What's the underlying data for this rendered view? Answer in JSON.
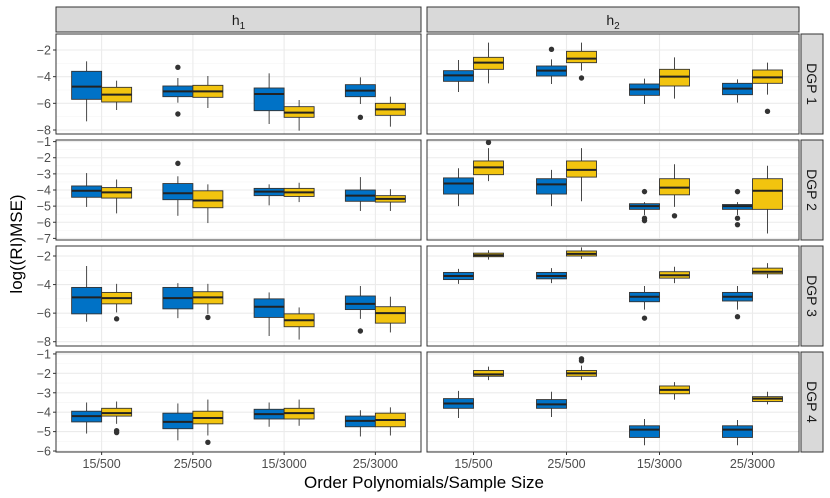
{
  "chart_data": {
    "type": "boxplot-facet",
    "xlabel": "Order Polynomials/Sample Size",
    "ylabel": "log((RI)MSE)",
    "categories": [
      "15/500",
      "25/500",
      "15/3000",
      "25/3000"
    ],
    "colors": {
      "series_a": "#0072C6",
      "series_b": "#F2C40F",
      "strip_bg": "#D9D9D9",
      "grid_major": "#EBEBEB",
      "grid_minor": "#F5F5F5",
      "axis_text": "#4D4D4D"
    },
    "columns": [
      {
        "label": "h",
        "subscript": "1"
      },
      {
        "label": "h",
        "subscript": "2"
      }
    ],
    "rows": [
      {
        "label": "DGP 1",
        "ylim": [
          -8.3,
          -0.8
        ],
        "ticks": [
          -8,
          -6,
          -4,
          -2
        ],
        "panels": [
          {
            "boxes": [
              {
                "series": "a",
                "q1": -5.7,
                "median": -4.75,
                "q3": -3.6,
                "lo": -7.35,
                "hi": -2.85,
                "outliers": []
              },
              {
                "series": "b",
                "q1": -5.9,
                "median": -5.35,
                "q3": -4.8,
                "lo": -6.5,
                "hi": -4.3,
                "outliers": []
              },
              {
                "series": "a",
                "q1": -5.5,
                "median": -5.1,
                "q3": -4.7,
                "lo": -5.95,
                "hi": -4.1,
                "outliers": [
                  -3.3,
                  -6.8
                ]
              },
              {
                "series": "b",
                "q1": -5.55,
                "median": -5.1,
                "q3": -4.65,
                "lo": -6.35,
                "hi": -3.95,
                "outliers": []
              },
              {
                "series": "a",
                "q1": -6.55,
                "median": -5.3,
                "q3": -4.85,
                "lo": -7.55,
                "hi": -3.75,
                "outliers": []
              },
              {
                "series": "b",
                "q1": -7.05,
                "median": -6.7,
                "q3": -6.25,
                "lo": -8.05,
                "hi": -5.75,
                "outliers": []
              },
              {
                "series": "a",
                "q1": -5.5,
                "median": -5.05,
                "q3": -4.6,
                "lo": -6.05,
                "hi": -4.05,
                "outliers": [
                  -7.05
                ]
              },
              {
                "series": "b",
                "q1": -6.9,
                "median": -6.45,
                "q3": -6.0,
                "lo": -7.75,
                "hi": -5.5,
                "outliers": []
              }
            ]
          },
          {
            "boxes": [
              {
                "series": "a",
                "q1": -4.35,
                "median": -3.9,
                "q3": -3.55,
                "lo": -5.15,
                "hi": -2.75,
                "outliers": []
              },
              {
                "series": "b",
                "q1": -3.45,
                "median": -2.95,
                "q3": -2.55,
                "lo": -4.5,
                "hi": -1.45,
                "outliers": []
              },
              {
                "series": "a",
                "q1": -3.95,
                "median": -3.55,
                "q3": -3.2,
                "lo": -4.55,
                "hi": -2.7,
                "outliers": [
                  -1.95
                ]
              },
              {
                "series": "b",
                "q1": -2.95,
                "median": -2.65,
                "q3": -2.1,
                "lo": -3.55,
                "hi": -1.45,
                "outliers": [
                  -4.1
                ]
              },
              {
                "series": "a",
                "q1": -5.4,
                "median": -4.95,
                "q3": -4.55,
                "lo": -6.05,
                "hi": -4.15,
                "outliers": []
              },
              {
                "series": "b",
                "q1": -4.7,
                "median": -4.0,
                "q3": -3.45,
                "lo": -5.65,
                "hi": -2.55,
                "outliers": []
              },
              {
                "series": "a",
                "q1": -5.35,
                "median": -4.9,
                "q3": -4.5,
                "lo": -5.95,
                "hi": -4.2,
                "outliers": []
              },
              {
                "series": "b",
                "q1": -4.5,
                "median": -4.05,
                "q3": -3.5,
                "lo": -5.35,
                "hi": -2.95,
                "outliers": [
                  -6.6
                ]
              }
            ]
          }
        ]
      },
      {
        "label": "DGP 2",
        "ylim": [
          -7.1,
          -0.9
        ],
        "ticks": [
          -7,
          -6,
          -5,
          -4,
          -3,
          -2,
          -1
        ],
        "panels": [
          {
            "boxes": [
              {
                "series": "a",
                "q1": -4.45,
                "median": -4.05,
                "q3": -3.75,
                "lo": -5.05,
                "hi": -2.95,
                "outliers": []
              },
              {
                "series": "b",
                "q1": -4.5,
                "median": -4.15,
                "q3": -3.85,
                "lo": -5.45,
                "hi": -3.35,
                "outliers": []
              },
              {
                "series": "a",
                "q1": -4.6,
                "median": -4.2,
                "q3": -3.6,
                "lo": -5.6,
                "hi": -3.15,
                "outliers": [
                  -2.35
                ]
              },
              {
                "series": "b",
                "q1": -5.1,
                "median": -4.65,
                "q3": -4.05,
                "lo": -6.05,
                "hi": -3.65,
                "outliers": []
              },
              {
                "series": "a",
                "q1": -4.35,
                "median": -4.1,
                "q3": -3.9,
                "lo": -4.95,
                "hi": -3.65,
                "outliers": []
              },
              {
                "series": "b",
                "q1": -4.4,
                "median": -4.15,
                "q3": -3.9,
                "lo": -4.75,
                "hi": -3.55,
                "outliers": []
              },
              {
                "series": "a",
                "q1": -4.7,
                "median": -4.35,
                "q3": -4.0,
                "lo": -5.3,
                "hi": -3.2,
                "outliers": []
              },
              {
                "series": "b",
                "q1": -4.75,
                "median": -4.55,
                "q3": -4.35,
                "lo": -5.3,
                "hi": -3.95,
                "outliers": []
              }
            ]
          },
          {
            "boxes": [
              {
                "series": "a",
                "q1": -4.25,
                "median": -3.6,
                "q3": -3.25,
                "lo": -5.0,
                "hi": -2.65,
                "outliers": []
              },
              {
                "series": "b",
                "q1": -3.05,
                "median": -2.6,
                "q3": -2.2,
                "lo": -3.45,
                "hi": -1.4,
                "outliers": [
                  -1.05
                ]
              },
              {
                "series": "a",
                "q1": -4.25,
                "median": -3.65,
                "q3": -3.3,
                "lo": -5.0,
                "hi": -2.75,
                "outliers": []
              },
              {
                "series": "b",
                "q1": -3.2,
                "median": -2.75,
                "q3": -2.2,
                "lo": -4.7,
                "hi": -1.4,
                "outliers": []
              },
              {
                "series": "a",
                "q1": -5.2,
                "median": -5.0,
                "q3": -4.85,
                "lo": -5.55,
                "hi": -4.75,
                "outliers": [
                  -4.1,
                  -5.75,
                  -5.9
                ]
              },
              {
                "series": "b",
                "q1": -4.3,
                "median": -3.85,
                "q3": -3.3,
                "lo": -5.05,
                "hi": -2.4,
                "outliers": [
                  -5.6
                ]
              },
              {
                "series": "a",
                "q1": -5.2,
                "median": -5.0,
                "q3": -4.9,
                "lo": -5.55,
                "hi": -4.75,
                "outliers": [
                  -4.1,
                  -5.75,
                  -6.15
                ]
              },
              {
                "series": "b",
                "q1": -5.2,
                "median": -4.05,
                "q3": -3.3,
                "lo": -6.7,
                "hi": -2.5,
                "outliers": []
              }
            ]
          }
        ]
      },
      {
        "label": "DGP 3",
        "ylim": [
          -8.3,
          -1.3
        ],
        "ticks": [
          -8,
          -6,
          -4,
          -2
        ],
        "panels": [
          {
            "boxes": [
              {
                "series": "a",
                "q1": -6.05,
                "median": -4.9,
                "q3": -4.2,
                "lo": -6.6,
                "hi": -2.7,
                "outliers": []
              },
              {
                "series": "b",
                "q1": -5.35,
                "median": -4.95,
                "q3": -4.55,
                "lo": -5.95,
                "hi": -3.95,
                "outliers": [
                  -6.4
                ]
              },
              {
                "series": "a",
                "q1": -5.7,
                "median": -4.95,
                "q3": -4.2,
                "lo": -6.35,
                "hi": -3.9,
                "outliers": []
              },
              {
                "series": "b",
                "q1": -5.35,
                "median": -4.9,
                "q3": -4.5,
                "lo": -6.05,
                "hi": -3.95,
                "outliers": [
                  -6.3
                ]
              },
              {
                "series": "a",
                "q1": -6.3,
                "median": -5.55,
                "q3": -5.0,
                "lo": -7.6,
                "hi": -4.55,
                "outliers": []
              },
              {
                "series": "b",
                "q1": -6.95,
                "median": -6.5,
                "q3": -6.05,
                "lo": -7.85,
                "hi": -5.6,
                "outliers": []
              },
              {
                "series": "a",
                "q1": -5.75,
                "median": -5.35,
                "q3": -4.8,
                "lo": -6.4,
                "hi": -4.1,
                "outliers": [
                  -7.25
                ]
              },
              {
                "series": "b",
                "q1": -6.7,
                "median": -6.0,
                "q3": -5.55,
                "lo": -7.35,
                "hi": -4.85,
                "outliers": []
              }
            ]
          },
          {
            "boxes": [
              {
                "series": "a",
                "q1": -3.65,
                "median": -3.4,
                "q3": -3.15,
                "lo": -3.95,
                "hi": -2.9,
                "outliers": []
              },
              {
                "series": "b",
                "q1": -2.05,
                "median": -1.95,
                "q3": -1.8,
                "lo": -2.25,
                "hi": -1.6,
                "outliers": []
              },
              {
                "series": "a",
                "q1": -3.6,
                "median": -3.4,
                "q3": -3.15,
                "lo": -3.9,
                "hi": -2.85,
                "outliers": []
              },
              {
                "series": "b",
                "q1": -2.0,
                "median": -1.85,
                "q3": -1.65,
                "lo": -2.2,
                "hi": -1.4,
                "outliers": []
              },
              {
                "series": "a",
                "q1": -5.2,
                "median": -4.85,
                "q3": -4.55,
                "lo": -5.75,
                "hi": -4.1,
                "outliers": [
                  -6.35
                ]
              },
              {
                "series": "b",
                "q1": -3.55,
                "median": -3.35,
                "q3": -3.1,
                "lo": -3.9,
                "hi": -2.75,
                "outliers": []
              },
              {
                "series": "a",
                "q1": -5.15,
                "median": -4.85,
                "q3": -4.55,
                "lo": -5.75,
                "hi": -4.1,
                "outliers": [
                  -6.25
                ]
              },
              {
                "series": "b",
                "q1": -3.25,
                "median": -3.1,
                "q3": -2.85,
                "lo": -3.55,
                "hi": -2.5,
                "outliers": []
              }
            ]
          }
        ]
      },
      {
        "label": "DGP 4",
        "ylim": [
          -6.05,
          -0.9
        ],
        "ticks": [
          -6,
          -5,
          -4,
          -3,
          -2,
          -1
        ],
        "panels": [
          {
            "boxes": [
              {
                "series": "a",
                "q1": -4.5,
                "median": -4.2,
                "q3": -3.95,
                "lo": -5.1,
                "hi": -3.5,
                "outliers": []
              },
              {
                "series": "b",
                "q1": -4.2,
                "median": -4.05,
                "q3": -3.8,
                "lo": -4.6,
                "hi": -3.45,
                "outliers": [
                  -4.95,
                  -5.05
                ]
              },
              {
                "series": "a",
                "q1": -4.85,
                "median": -4.5,
                "q3": -4.05,
                "lo": -5.45,
                "hi": -3.55,
                "outliers": []
              },
              {
                "series": "b",
                "q1": -4.6,
                "median": -4.3,
                "q3": -3.95,
                "lo": -5.2,
                "hi": -3.35,
                "outliers": [
                  -5.55
                ]
              },
              {
                "series": "a",
                "q1": -4.35,
                "median": -4.1,
                "q3": -3.85,
                "lo": -4.75,
                "hi": -3.5,
                "outliers": []
              },
              {
                "series": "b",
                "q1": -4.35,
                "median": -4.05,
                "q3": -3.8,
                "lo": -4.7,
                "hi": -3.35,
                "outliers": []
              },
              {
                "series": "a",
                "q1": -4.75,
                "median": -4.45,
                "q3": -4.2,
                "lo": -5.25,
                "hi": -3.9,
                "outliers": []
              },
              {
                "series": "b",
                "q1": -4.75,
                "median": -4.4,
                "q3": -4.05,
                "lo": -5.2,
                "hi": -3.75,
                "outliers": []
              }
            ]
          },
          {
            "boxes": [
              {
                "series": "a",
                "q1": -3.8,
                "median": -3.55,
                "q3": -3.3,
                "lo": -4.3,
                "hi": -2.9,
                "outliers": []
              },
              {
                "series": "b",
                "q1": -2.15,
                "median": -2.05,
                "q3": -1.85,
                "lo": -2.35,
                "hi": -1.65,
                "outliers": []
              },
              {
                "series": "a",
                "q1": -3.8,
                "median": -3.6,
                "q3": -3.35,
                "lo": -4.25,
                "hi": -2.95,
                "outliers": []
              },
              {
                "series": "b",
                "q1": -2.15,
                "median": -2.0,
                "q3": -1.85,
                "lo": -2.35,
                "hi": -1.6,
                "outliers": [
                  -1.25,
                  -1.35
                ]
              },
              {
                "series": "a",
                "q1": -5.3,
                "median": -4.9,
                "q3": -4.7,
                "lo": -5.7,
                "hi": -4.35,
                "outliers": []
              },
              {
                "series": "b",
                "q1": -3.05,
                "median": -2.85,
                "q3": -2.65,
                "lo": -3.35,
                "hi": -2.45,
                "outliers": []
              },
              {
                "series": "a",
                "q1": -5.3,
                "median": -4.9,
                "q3": -4.7,
                "lo": -5.7,
                "hi": -4.4,
                "outliers": []
              },
              {
                "series": "b",
                "q1": -3.45,
                "median": -3.3,
                "q3": -3.2,
                "lo": -3.6,
                "hi": -2.95,
                "outliers": []
              }
            ]
          }
        ]
      }
    ]
  }
}
